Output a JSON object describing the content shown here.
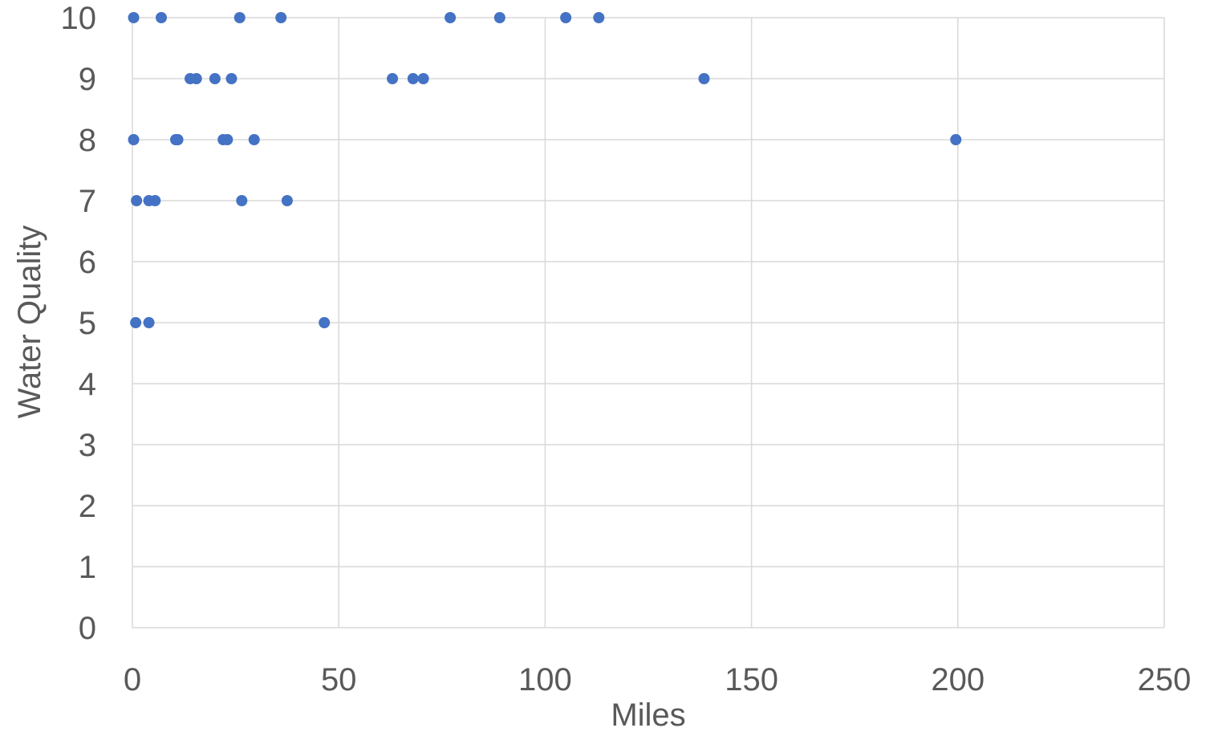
{
  "chart_data": {
    "type": "scatter",
    "title": "",
    "xlabel": "Miles",
    "ylabel": "Water Quality",
    "xlim": [
      0,
      250
    ],
    "ylim": [
      0,
      10
    ],
    "x_ticks": [
      "0",
      "50",
      "100",
      "150",
      "200",
      "250"
    ],
    "y_ticks": [
      "0",
      "1",
      "2",
      "3",
      "4",
      "5",
      "6",
      "7",
      "8",
      "9",
      "10"
    ],
    "grid": "on",
    "legend": "none",
    "marker_color": "#4472C4",
    "series": [
      {
        "points": [
          {
            "x": 0.3,
            "y": 10
          },
          {
            "x": 7,
            "y": 10
          },
          {
            "x": 26,
            "y": 10
          },
          {
            "x": 36,
            "y": 10
          },
          {
            "x": 77,
            "y": 10
          },
          {
            "x": 89,
            "y": 10
          },
          {
            "x": 105,
            "y": 10
          },
          {
            "x": 113,
            "y": 10
          },
          {
            "x": 14,
            "y": 9
          },
          {
            "x": 15.5,
            "y": 9
          },
          {
            "x": 20,
            "y": 9
          },
          {
            "x": 24,
            "y": 9
          },
          {
            "x": 63,
            "y": 9
          },
          {
            "x": 68,
            "y": 9
          },
          {
            "x": 70.5,
            "y": 9
          },
          {
            "x": 138.5,
            "y": 9
          },
          {
            "x": 0.3,
            "y": 8
          },
          {
            "x": 10.5,
            "y": 8
          },
          {
            "x": 11,
            "y": 8
          },
          {
            "x": 22,
            "y": 8
          },
          {
            "x": 23,
            "y": 8
          },
          {
            "x": 29.5,
            "y": 8
          },
          {
            "x": 199.5,
            "y": 8
          },
          {
            "x": 1,
            "y": 7
          },
          {
            "x": 4,
            "y": 7
          },
          {
            "x": 5.5,
            "y": 7
          },
          {
            "x": 26.5,
            "y": 7
          },
          {
            "x": 37.5,
            "y": 7
          },
          {
            "x": 0.8,
            "y": 5
          },
          {
            "x": 4,
            "y": 5
          },
          {
            "x": 46.5,
            "y": 5
          }
        ]
      }
    ]
  }
}
